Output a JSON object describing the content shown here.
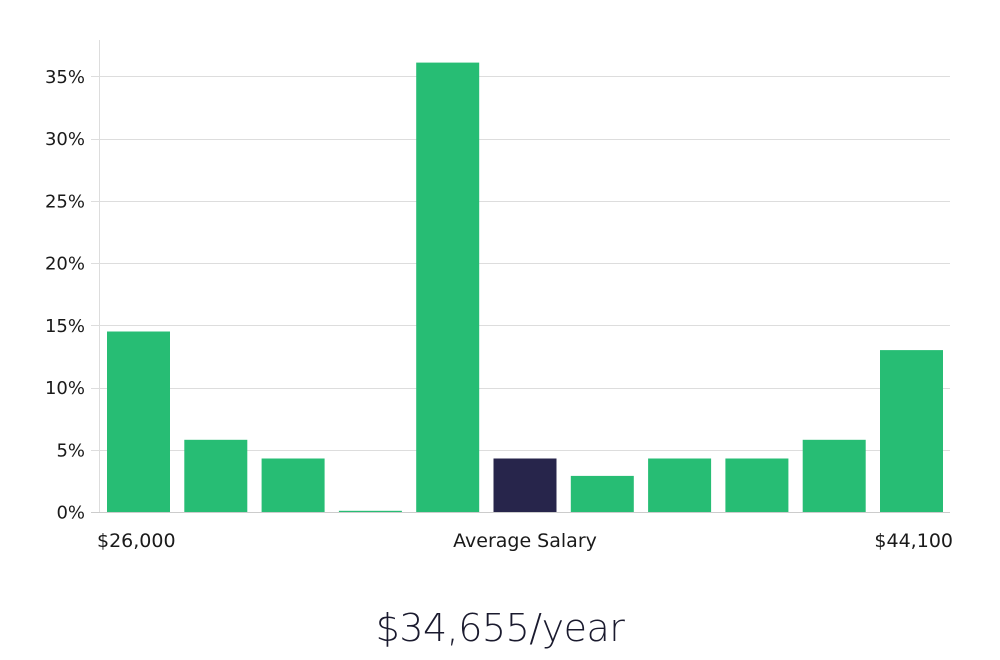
{
  "chart_data": {
    "type": "bar",
    "title": "",
    "xlabel": "",
    "ylabel": "",
    "ylim": [
      0,
      37.5
    ],
    "yticks": [
      0,
      5,
      10,
      15,
      20,
      25,
      30,
      35
    ],
    "ytick_suffix": "%",
    "grid": true,
    "bins": 11,
    "values": [
      14.5,
      5.8,
      4.3,
      0.1,
      36.1,
      4.3,
      2.9,
      4.3,
      4.3,
      5.8,
      13.0
    ],
    "highlight_index": 5,
    "x_labels": {
      "left": "$26,000",
      "center": "Average Salary",
      "right": "$44,100"
    },
    "colors": {
      "bar": "#27bd74",
      "highlight": "#27254b",
      "grid": "#dddddd",
      "axis": "#dddddd"
    }
  },
  "summary": {
    "average_salary": "$34,655/year"
  }
}
